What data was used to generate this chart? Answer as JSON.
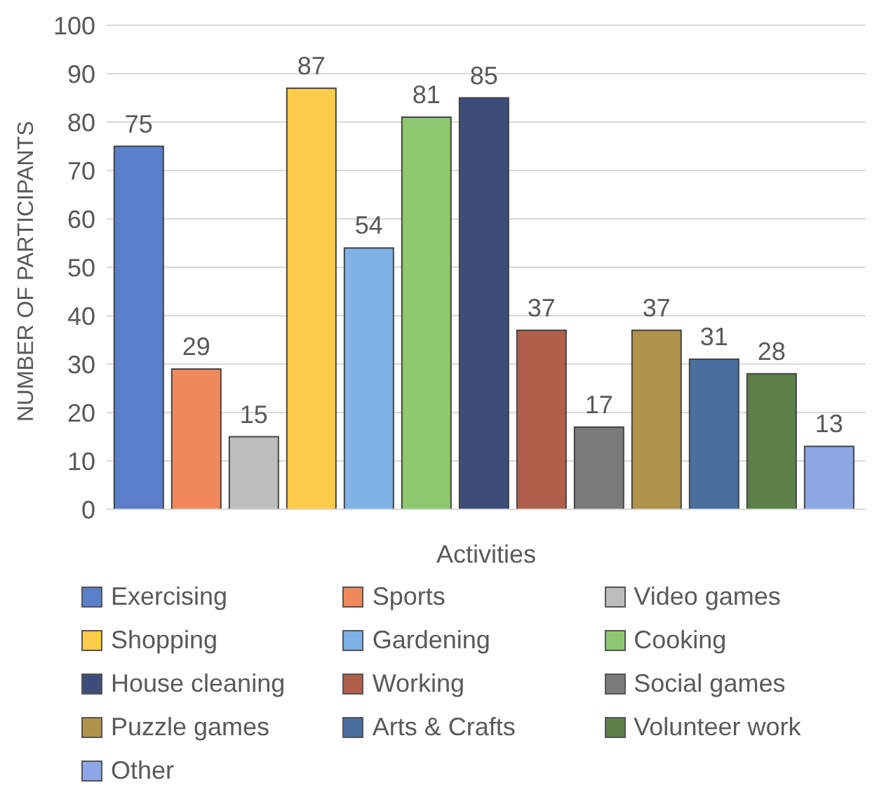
{
  "chart_data": {
    "type": "bar",
    "xlabel": "Activities",
    "ylabel": "NUMBER OF PARTICIPANTS",
    "categories": [
      null
    ],
    "series": [
      {
        "name": "Exercising",
        "color": "#5b7fc8",
        "values": [
          75
        ]
      },
      {
        "name": "Sports",
        "color": "#f08a5d",
        "values": [
          29
        ]
      },
      {
        "name": "Video games",
        "color": "#bdbdbd",
        "values": [
          15
        ]
      },
      {
        "name": "Shopping",
        "color": "#ffcc4a",
        "values": [
          87
        ]
      },
      {
        "name": "Gardening",
        "color": "#7fb2e5",
        "values": [
          54
        ]
      },
      {
        "name": "Cooking",
        "color": "#8cc96e",
        "values": [
          81
        ]
      },
      {
        "name": "House cleaning",
        "color": "#3d4c7a",
        "values": [
          85
        ]
      },
      {
        "name": "Working",
        "color": "#b0604a",
        "values": [
          37
        ]
      },
      {
        "name": "Social games",
        "color": "#7a7a7a",
        "values": [
          17
        ]
      },
      {
        "name": "Puzzle games",
        "color": "#b0924a",
        "values": [
          37
        ]
      },
      {
        "name": "Arts & Crafts",
        "color": "#4a6e9e",
        "values": [
          31
        ]
      },
      {
        "name": "Volunteer work",
        "color": "#5c8048",
        "values": [
          28
        ]
      },
      {
        "name": "Other",
        "color": "#8ca6e6",
        "values": [
          13
        ]
      }
    ],
    "ylim": [
      0,
      100
    ],
    "yticks": [
      0,
      10,
      20,
      30,
      40,
      50,
      60,
      70,
      80,
      90,
      100
    ],
    "grid": "y",
    "legend": "bottom",
    "data_labels": true
  }
}
